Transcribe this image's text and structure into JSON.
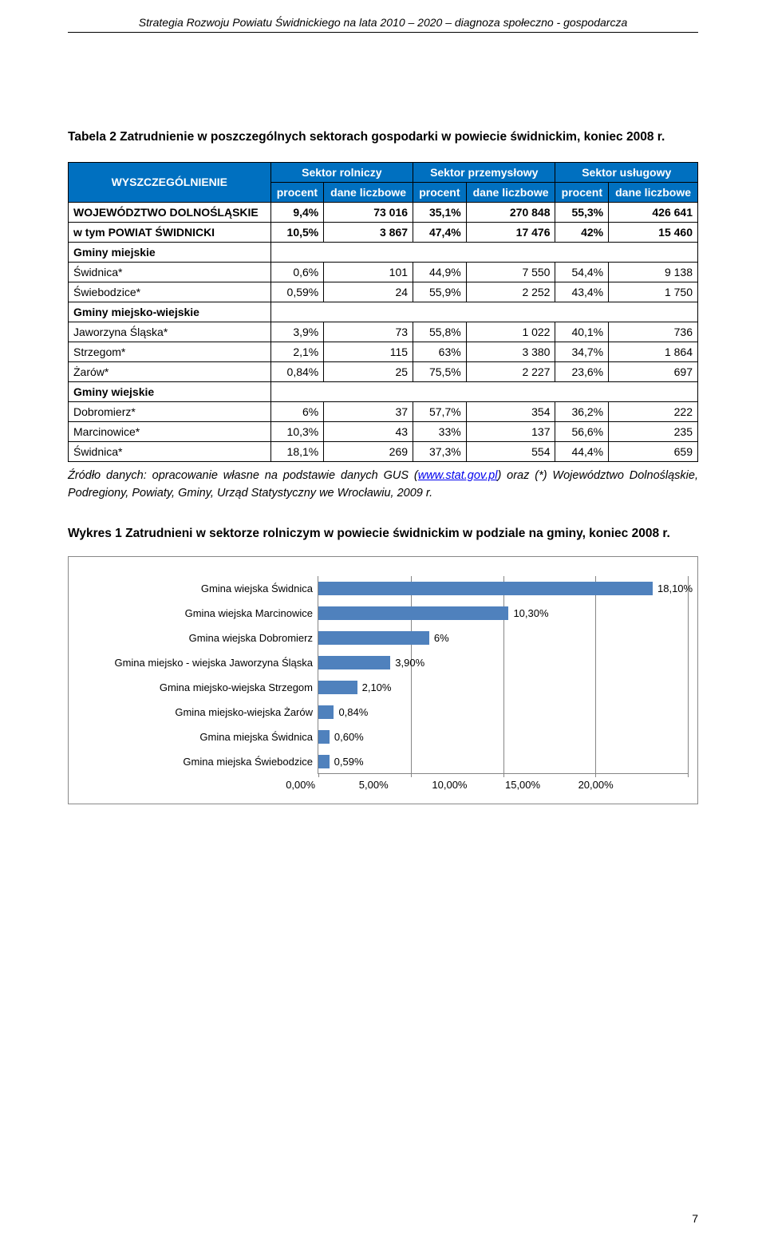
{
  "doc_header": "Strategia Rozwoju Powiatu Świdnickiego na lata 2010 – 2020 – diagnoza społeczno - gospodarcza",
  "table_caption": "Tabela 2 Zatrudnienie w poszczególnych sektorach gospodarki w powiecie świdnickim, koniec 2008 r.",
  "table": {
    "head": {
      "corner": "WYSZCZEGÓLNIENIE",
      "groups": [
        "Sektor rolniczy",
        "Sektor przemysłowy",
        "Sektor usługowy"
      ],
      "sub": [
        "procent",
        "dane liczbowe",
        "procent",
        "dane liczbowe",
        "procent",
        "dane liczbowe"
      ]
    },
    "top_rows": [
      {
        "label": "WOJEWÓDZTWO DOLNOŚLĄSKIE",
        "cells": [
          "9,4%",
          "73 016",
          "35,1%",
          "270 848",
          "55,3%",
          "426 641"
        ],
        "bold": true
      },
      {
        "label": "w tym POWIAT ŚWIDNICKI",
        "cells": [
          "10,5%",
          "3 867",
          "47,4%",
          "17 476",
          "42%",
          "15 460"
        ],
        "bold": true
      }
    ],
    "sections": [
      {
        "title": "Gminy miejskie",
        "rows": [
          {
            "label": "Świdnica*",
            "cells": [
              "0,6%",
              "101",
              "44,9%",
              "7 550",
              "54,4%",
              "9 138"
            ]
          },
          {
            "label": "Świebodzice*",
            "cells": [
              "0,59%",
              "24",
              "55,9%",
              "2 252",
              "43,4%",
              "1 750"
            ]
          }
        ]
      },
      {
        "title": "Gminy miejsko-wiejskie",
        "rows": [
          {
            "label": "Jaworzyna Śląska*",
            "cells": [
              "3,9%",
              "73",
              "55,8%",
              "1 022",
              "40,1%",
              "736"
            ]
          },
          {
            "label": "Strzegom*",
            "cells": [
              "2,1%",
              "115",
              "63%",
              "3 380",
              "34,7%",
              "1 864"
            ]
          },
          {
            "label": "Żarów*",
            "cells": [
              "0,84%",
              "25",
              "75,5%",
              "2 227",
              "23,6%",
              "697"
            ]
          }
        ]
      },
      {
        "title": "Gminy wiejskie",
        "rows": [
          {
            "label": "Dobromierz*",
            "cells": [
              "6%",
              "37",
              "57,7%",
              "354",
              "36,2%",
              "222"
            ]
          },
          {
            "label": "Marcinowice*",
            "cells": [
              "10,3%",
              "43",
              "33%",
              "137",
              "56,6%",
              "235"
            ]
          },
          {
            "label": "Świdnica*",
            "cells": [
              "18,1%",
              "269",
              "37,3%",
              "554",
              "44,4%",
              "659"
            ]
          }
        ]
      }
    ]
  },
  "source_prefix": "Źródło danych: opracowanie własne na podstawie danych GUS (",
  "source_link": "www.stat.gov.pl",
  "source_suffix": ") oraz (*) Województwo Dolnośląskie, Podregiony, Powiaty, Gminy, Urząd Statystyczny we Wrocławiu, 2009 r.",
  "chart_caption": "Wykres 1 Zatrudnieni w sektorze rolniczym w powiecie świdnickim w podziale na gminy, koniec 2008 r.",
  "chart": {
    "type": "bar-horizontal",
    "bar_color": "#4f81bd",
    "grid_color": "#868686",
    "background": "#ffffff",
    "xmin": 0,
    "xmax": 20,
    "xtick_step": 5,
    "xticks": [
      "0,00%",
      "5,00%",
      "10,00%",
      "15,00%",
      "20,00%"
    ],
    "categories": [
      "Gmina wiejska Świdnica",
      "Gmina wiejska Marcinowice",
      "Gmina wiejska Dobromierz",
      "Gmina miejsko - wiejska Jaworzyna Śląska",
      "Gmina miejsko-wiejska Strzegom",
      "Gmina miejsko-wiejska Żarów",
      "Gmina miejska Świdnica",
      "Gmina miejska Świebodzice"
    ],
    "values": [
      18.1,
      10.3,
      6.0,
      3.9,
      2.1,
      0.84,
      0.6,
      0.59
    ],
    "value_labels": [
      "18,10%",
      "10,30%",
      "6%",
      "3,90%",
      "2,10%",
      "0,84%",
      "0,60%",
      "0,59%"
    ]
  },
  "page_number": "7"
}
